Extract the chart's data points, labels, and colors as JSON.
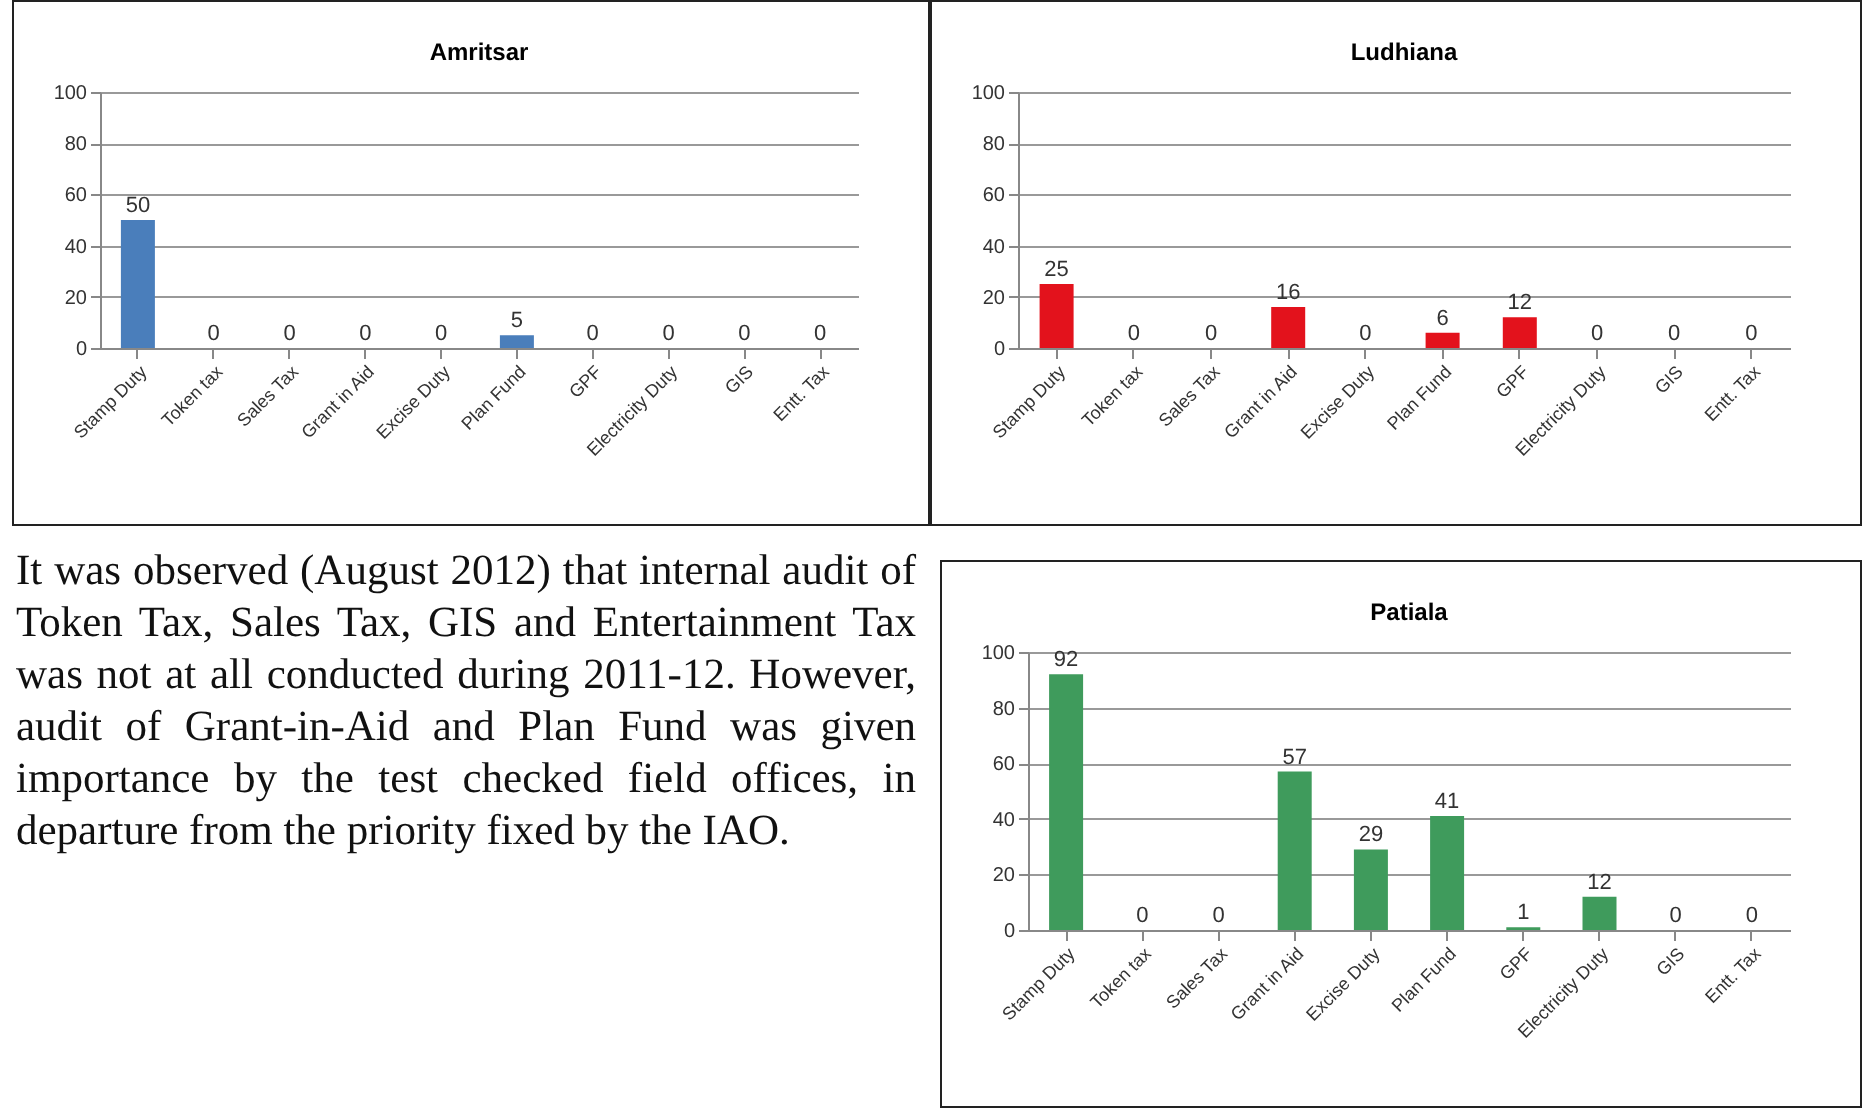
{
  "chart_data": [
    {
      "type": "bar",
      "title": "Amritsar",
      "categories": [
        "Stamp Duty",
        "Token tax",
        "Sales Tax",
        "Grant in Aid",
        "Excise Duty",
        "Plan Fund",
        "GPF",
        "Electricity Duty",
        "GIS",
        "Entt. Tax"
      ],
      "values": [
        50,
        0,
        0,
        0,
        0,
        5,
        0,
        0,
        0,
        0
      ],
      "color": "#4a7ebb",
      "ylim": [
        0,
        100
      ],
      "yticks": [
        0,
        20,
        40,
        60,
        80,
        100
      ],
      "grid": "y",
      "data_labels": true
    },
    {
      "type": "bar",
      "title": "Ludhiana",
      "categories": [
        "Stamp Duty",
        "Token tax",
        "Sales Tax",
        "Grant in Aid",
        "Excise Duty",
        "Plan Fund",
        "GPF",
        "Electricity Duty",
        "GIS",
        "Entt. Tax"
      ],
      "values": [
        25,
        0,
        0,
        16,
        0,
        6,
        12,
        0,
        0,
        0
      ],
      "color": "#e3121c",
      "ylim": [
        0,
        100
      ],
      "yticks": [
        0,
        20,
        40,
        60,
        80,
        100
      ],
      "grid": "y",
      "data_labels": true
    },
    {
      "type": "other",
      "annotations": [
        "It was observed (August 2012) that internal audit of Token Tax, Sales Tax, GIS and Entertainment Tax was not at all conducted during 2011-12. However, audit of Grant-in-Aid and Plan Fund was given importance by the test checked field offices, in departure from the priority fixed by the IAO."
      ]
    },
    {
      "type": "bar",
      "title": "Patiala",
      "categories": [
        "Stamp Duty",
        "Token tax",
        "Sales Tax",
        "Grant in Aid",
        "Excise Duty",
        "Plan Fund",
        "GPF",
        "Electricity Duty",
        "GIS",
        "Entt. Tax"
      ],
      "values": [
        92,
        0,
        0,
        57,
        29,
        41,
        1,
        12,
        0,
        0
      ],
      "color": "#3f9b5c",
      "ylim": [
        0,
        100
      ],
      "yticks": [
        0,
        20,
        40,
        60,
        80,
        100
      ],
      "grid": "y",
      "data_labels": true
    }
  ]
}
